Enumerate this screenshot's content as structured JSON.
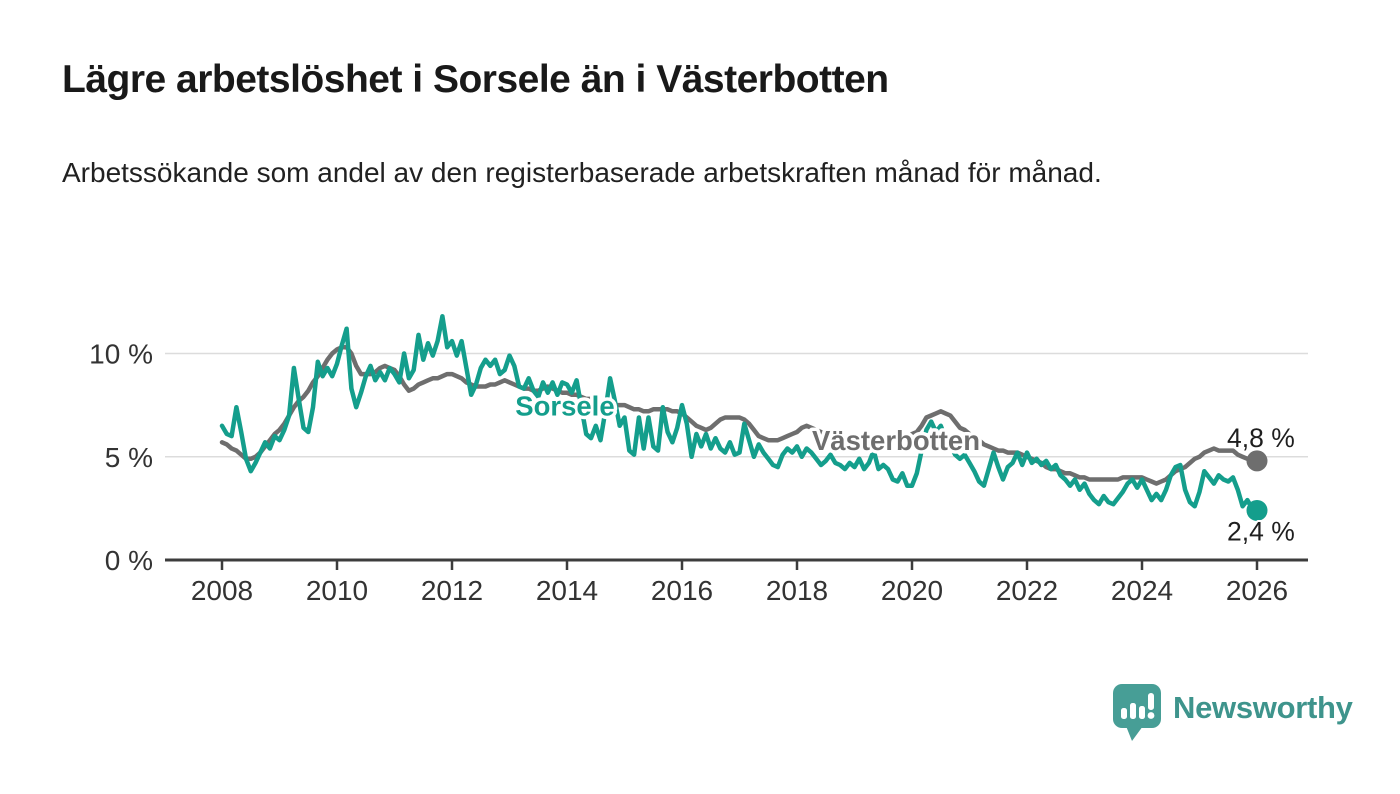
{
  "footer": {
    "brand": "Newsworthy"
  },
  "chart_data": {
    "type": "line",
    "title": "Lägre arbetslöshet i Sorsele än i Västerbotten",
    "subtitle": "Arbetssökande som andel av den registerbaserade arbetskraften månad för månad.",
    "x_start": 2008.0,
    "x_step_months": 1,
    "xlim": [
      2007.0,
      2026.9
    ],
    "ylim": [
      0,
      12.5
    ],
    "grid": "horizontal-only",
    "legend_position": "inline-labels",
    "colors": {
      "grid": "#dcdcdc",
      "axis": "#3c3c3c",
      "tick_text": "#333333",
      "annotation_text": "#1f1f1f"
    },
    "y_ticks": [
      {
        "v": 0,
        "label": "0 %"
      },
      {
        "v": 5,
        "label": "5 %"
      },
      {
        "v": 10,
        "label": "10 %"
      }
    ],
    "x_ticks": [
      {
        "v": 2008,
        "label": "2008"
      },
      {
        "v": 2010,
        "label": "2010"
      },
      {
        "v": 2012,
        "label": "2012"
      },
      {
        "v": 2014,
        "label": "2014"
      },
      {
        "v": 2016,
        "label": "2016"
      },
      {
        "v": 2018,
        "label": "2018"
      },
      {
        "v": 2020,
        "label": "2020"
      },
      {
        "v": 2022,
        "label": "2022"
      },
      {
        "v": 2024,
        "label": "2024"
      },
      {
        "v": 2026,
        "label": "2026"
      }
    ],
    "series": [
      {
        "id": "vasterbotten",
        "name": "Västerbotten",
        "color": "#6e6e6e",
        "label_x": 2018.26,
        "label_y": 5.33,
        "end_label": "4,8 %",
        "end_label_position": "above",
        "values": [
          5.7,
          5.6,
          5.4,
          5.3,
          5.1,
          4.9,
          4.9,
          5.0,
          5.2,
          5.5,
          5.8,
          6.1,
          6.3,
          6.6,
          7.0,
          7.4,
          7.7,
          7.9,
          8.2,
          8.6,
          8.9,
          9.3,
          9.7,
          10.0,
          10.2,
          10.3,
          10.3,
          10.0,
          9.4,
          9.0,
          9.0,
          9.0,
          9.1,
          9.3,
          9.4,
          9.3,
          9.2,
          8.9,
          8.5,
          8.2,
          8.3,
          8.5,
          8.6,
          8.7,
          8.8,
          8.8,
          8.9,
          9.0,
          9.0,
          8.9,
          8.8,
          8.6,
          8.5,
          8.4,
          8.4,
          8.4,
          8.5,
          8.5,
          8.6,
          8.7,
          8.6,
          8.5,
          8.4,
          8.3,
          8.3,
          8.2,
          8.2,
          8.3,
          8.4,
          8.3,
          8.2,
          8.1,
          8.1,
          8.0,
          8.0,
          7.9,
          7.8,
          7.8,
          7.7,
          7.6,
          7.6,
          7.5,
          7.5,
          7.5,
          7.5,
          7.4,
          7.3,
          7.3,
          7.2,
          7.2,
          7.3,
          7.3,
          7.3,
          7.3,
          7.2,
          7.2,
          7.1,
          6.9,
          6.7,
          6.5,
          6.4,
          6.3,
          6.4,
          6.6,
          6.8,
          6.9,
          6.9,
          6.9,
          6.9,
          6.8,
          6.6,
          6.3,
          6.0,
          5.9,
          5.8,
          5.8,
          5.8,
          5.9,
          6.0,
          6.1,
          6.2,
          6.4,
          6.5,
          6.4,
          6.3,
          6.2,
          6.1,
          6.0,
          6.0,
          5.9,
          5.9,
          5.8,
          5.8,
          5.8,
          5.7,
          5.7,
          5.8,
          5.8,
          5.9,
          5.9,
          5.9,
          5.9,
          6.0,
          6.0,
          6.1,
          6.2,
          6.5,
          6.9,
          7.0,
          7.1,
          7.2,
          7.1,
          7.0,
          6.7,
          6.4,
          6.3,
          6.1,
          6.0,
          5.8,
          5.6,
          5.5,
          5.4,
          5.3,
          5.3,
          5.2,
          5.2,
          5.2,
          5.1,
          5.0,
          4.9,
          4.8,
          4.7,
          4.5,
          4.4,
          4.4,
          4.3,
          4.2,
          4.2,
          4.1,
          4.0,
          4.0,
          3.9,
          3.9,
          3.9,
          3.9,
          3.9,
          3.9,
          3.9,
          4.0,
          4.0,
          4.0,
          4.0,
          4.0,
          3.9,
          3.8,
          3.7,
          3.8,
          3.9,
          4.1,
          4.3,
          4.4,
          4.5,
          4.7,
          4.9,
          5.0,
          5.2,
          5.3,
          5.4,
          5.3,
          5.3,
          5.3,
          5.3,
          5.1,
          5.0,
          4.9,
          4.8,
          4.8
        ]
      },
      {
        "id": "sorsele",
        "name": "Sorsele",
        "color": "#149e8c",
        "label_x": 2013.1,
        "label_y": 7.0,
        "end_label": "2,4 %",
        "end_label_position": "below",
        "values": [
          6.5,
          6.1,
          6.0,
          7.4,
          6.2,
          4.9,
          4.3,
          4.7,
          5.2,
          5.7,
          5.4,
          6.0,
          5.8,
          6.3,
          7.0,
          9.3,
          7.8,
          6.4,
          6.2,
          7.4,
          9.6,
          8.9,
          9.3,
          8.9,
          9.5,
          10.4,
          11.2,
          8.3,
          7.4,
          8.1,
          8.9,
          9.4,
          8.7,
          9.1,
          8.7,
          9.3,
          9.0,
          8.6,
          10.0,
          8.8,
          9.2,
          10.9,
          9.7,
          10.5,
          9.9,
          10.6,
          11.8,
          10.3,
          10.6,
          9.9,
          10.6,
          9.3,
          8.0,
          8.5,
          9.3,
          9.7,
          9.4,
          9.7,
          9.0,
          9.2,
          9.9,
          9.4,
          8.4,
          8.3,
          8.8,
          8.2,
          7.9,
          8.6,
          8.1,
          8.6,
          8.0,
          8.6,
          8.5,
          8.1,
          8.7,
          7.4,
          6.1,
          5.9,
          6.5,
          5.8,
          7.2,
          8.8,
          7.7,
          6.5,
          6.9,
          5.3,
          5.1,
          6.9,
          5.4,
          6.9,
          5.5,
          5.3,
          7.4,
          6.2,
          5.7,
          6.4,
          7.5,
          6.6,
          5.0,
          6.1,
          5.5,
          6.1,
          5.4,
          5.9,
          5.4,
          5.2,
          5.7,
          5.1,
          5.2,
          6.6,
          5.8,
          5.0,
          5.6,
          5.2,
          4.9,
          4.6,
          4.5,
          5.1,
          5.4,
          5.2,
          5.5,
          5.0,
          5.4,
          5.2,
          4.9,
          4.6,
          4.8,
          5.1,
          4.7,
          4.6,
          4.4,
          4.7,
          4.5,
          4.9,
          4.4,
          4.7,
          5.3,
          4.4,
          4.6,
          4.4,
          3.9,
          3.8,
          4.2,
          3.6,
          3.6,
          4.2,
          5.3,
          6.3,
          6.7,
          6.2,
          6.5,
          5.9,
          5.6,
          5.1,
          4.9,
          5.1,
          4.7,
          4.3,
          3.8,
          3.6,
          4.4,
          5.2,
          4.5,
          3.9,
          4.5,
          4.7,
          5.2,
          4.6,
          5.2,
          4.7,
          4.9,
          4.6,
          4.8,
          4.4,
          4.6,
          4.1,
          3.9,
          3.6,
          3.9,
          3.4,
          3.7,
          3.2,
          2.9,
          2.7,
          3.1,
          2.8,
          2.7,
          3.0,
          3.3,
          3.7,
          3.9,
          3.5,
          3.9,
          3.4,
          2.9,
          3.2,
          2.9,
          3.4,
          4.1,
          4.5,
          4.6,
          3.4,
          2.8,
          2.6,
          3.3,
          4.3,
          4.0,
          3.7,
          4.1,
          3.9,
          3.8,
          4.0,
          3.4,
          2.6,
          2.9,
          2.5,
          2.4
        ]
      }
    ]
  }
}
